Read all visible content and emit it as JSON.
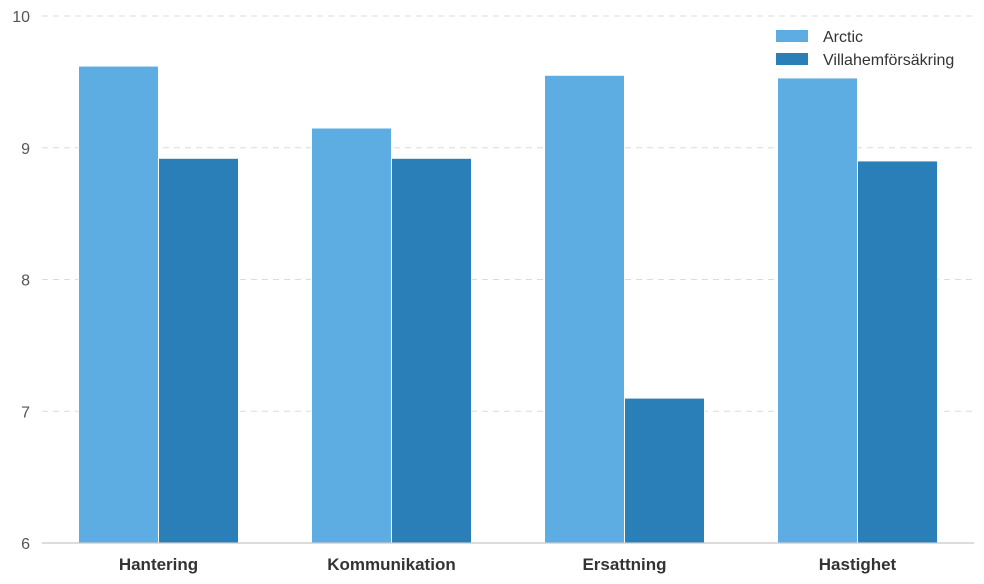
{
  "chart_data": {
    "type": "bar",
    "categories": [
      "Hantering",
      "Kommunikation",
      "Ersattning",
      "Hastighet"
    ],
    "series": [
      {
        "name": "Arctic",
        "values": [
          9.62,
          9.15,
          9.55,
          9.53
        ],
        "color": "#5dade2"
      },
      {
        "name": "Villahemförsäkring",
        "values": [
          8.92,
          8.92,
          7.1,
          8.9
        ],
        "color": "#2a7fb8"
      }
    ],
    "title": "",
    "xlabel": "",
    "ylabel": "",
    "ylim": [
      6,
      10
    ],
    "yticks": [
      "6",
      "7",
      "8",
      "9",
      "10"
    ],
    "grid": true,
    "legend_position": "top-right"
  }
}
